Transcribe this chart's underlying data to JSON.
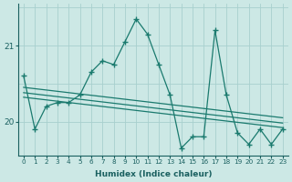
{
  "x": [
    0,
    1,
    2,
    3,
    4,
    5,
    6,
    7,
    8,
    9,
    10,
    11,
    12,
    13,
    14,
    15,
    16,
    17,
    18,
    19,
    20,
    21,
    22,
    23
  ],
  "y_main": [
    20.6,
    19.9,
    20.2,
    20.25,
    20.25,
    20.35,
    20.65,
    20.8,
    20.75,
    21.05,
    21.35,
    21.15,
    20.75,
    20.35,
    19.65,
    19.8,
    19.8,
    21.2,
    20.35,
    19.85,
    19.7,
    19.9,
    19.7,
    19.9
  ],
  "y_trend1_start": 20.45,
  "y_trend1_end": 20.05,
  "y_trend2_start": 20.38,
  "y_trend2_end": 19.98,
  "y_trend3_start": 20.32,
  "y_trend3_end": 19.92,
  "line_color": "#1a7a6e",
  "bg_color": "#cce8e5",
  "grid_color": "#a8d0ce",
  "text_color": "#1a6060",
  "xlabel": "Humidex (Indice chaleur)",
  "yticks": [
    20,
    21
  ],
  "ylim": [
    19.55,
    21.55
  ],
  "xlim": [
    -0.5,
    23.5
  ]
}
